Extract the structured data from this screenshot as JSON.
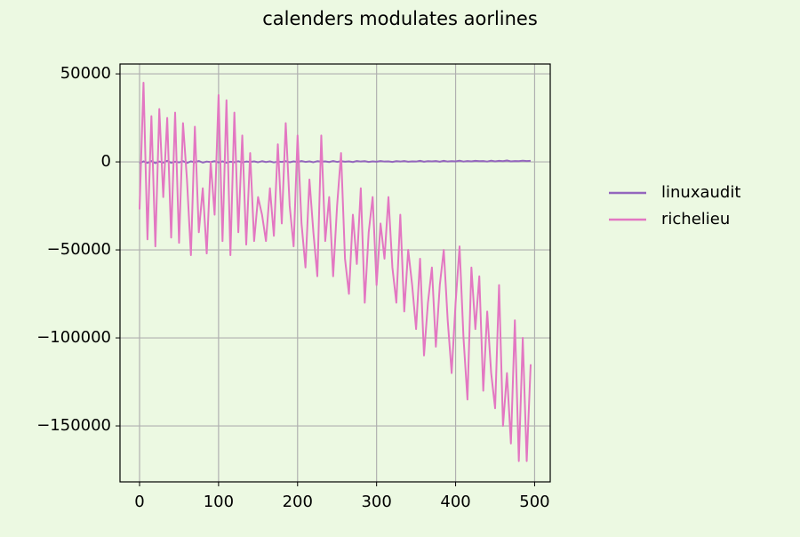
{
  "chart_data": {
    "type": "line",
    "title": "calenders modulates aorlines",
    "x": [
      0,
      5,
      10,
      15,
      20,
      25,
      30,
      35,
      40,
      45,
      50,
      55,
      60,
      65,
      70,
      75,
      80,
      85,
      90,
      95,
      100,
      105,
      110,
      115,
      120,
      125,
      130,
      135,
      140,
      145,
      150,
      155,
      160,
      165,
      170,
      175,
      180,
      185,
      190,
      195,
      200,
      205,
      210,
      215,
      220,
      225,
      230,
      235,
      240,
      245,
      250,
      255,
      260,
      265,
      270,
      275,
      280,
      285,
      290,
      295,
      300,
      305,
      310,
      315,
      320,
      325,
      330,
      335,
      340,
      345,
      350,
      355,
      360,
      365,
      370,
      375,
      380,
      385,
      390,
      395,
      400,
      405,
      410,
      415,
      420,
      425,
      430,
      435,
      440,
      445,
      450,
      455,
      460,
      465,
      470,
      475,
      480,
      485,
      490,
      495
    ],
    "series": [
      {
        "name": "linuxaudit",
        "color": "#9467bd",
        "values": [
          -800,
          300,
          -600,
          500,
          -700,
          200,
          -400,
          600,
          -500,
          100,
          -300,
          400,
          -600,
          300,
          -200,
          500,
          -400,
          200,
          -100,
          400,
          -300,
          300,
          -500,
          100,
          -200,
          400,
          -300,
          200,
          0,
          300,
          -200,
          400,
          -100,
          300,
          -300,
          200,
          0,
          400,
          -200,
          300,
          -100,
          500,
          0,
          300,
          -200,
          400,
          100,
          300,
          -100,
          500,
          0,
          400,
          100,
          300,
          -100,
          500,
          200,
          400,
          0,
          300,
          100,
          500,
          200,
          300,
          0,
          400,
          200,
          500,
          100,
          300,
          200,
          600,
          100,
          400,
          300,
          500,
          100,
          600,
          200,
          400,
          300,
          700,
          200,
          500,
          300,
          600,
          400,
          500,
          200,
          700,
          300,
          600,
          400,
          800,
          300,
          500,
          400,
          700,
          500,
          600
        ]
      },
      {
        "name": "richelieu",
        "color": "#e377c2",
        "values": [
          -27000,
          45000,
          -44000,
          26000,
          -48000,
          30000,
          -20000,
          25000,
          -43000,
          28000,
          -46000,
          22000,
          -10000,
          -53000,
          20000,
          -40000,
          -15000,
          -52000,
          0,
          -30000,
          38000,
          -45000,
          35000,
          -53000,
          28000,
          -40000,
          15000,
          -47000,
          5000,
          -45000,
          -20000,
          -30000,
          -45000,
          -15000,
          -42000,
          10000,
          -35000,
          22000,
          -25000,
          -48000,
          15000,
          -35000,
          -60000,
          -10000,
          -40000,
          -65000,
          15000,
          -45000,
          -20000,
          -65000,
          -25000,
          5000,
          -55000,
          -75000,
          -30000,
          -58000,
          -15000,
          -80000,
          -40000,
          -20000,
          -70000,
          -35000,
          -55000,
          -20000,
          -60000,
          -80000,
          -30000,
          -85000,
          -50000,
          -70000,
          -95000,
          -55000,
          -110000,
          -80000,
          -60000,
          -105000,
          -70000,
          -50000,
          -90000,
          -120000,
          -80000,
          -48000,
          -100000,
          -135000,
          -60000,
          -95000,
          -65000,
          -130000,
          -85000,
          -120000,
          -140000,
          -70000,
          -150000,
          -120000,
          -160000,
          -90000,
          -170000,
          -100000,
          -170000,
          -115000
        ]
      }
    ],
    "xlim": [
      -24.75,
      519.75
    ],
    "xticks": [
      0,
      100,
      200,
      300,
      400,
      500
    ],
    "ylim": [
      -181800,
      55600
    ],
    "yticks": [
      {
        "value": -150000,
        "label": "−150000"
      },
      {
        "value": -100000,
        "label": "−100000"
      },
      {
        "value": -50000,
        "label": "−50000"
      },
      0,
      50000
    ],
    "grid": true,
    "legend": "right"
  }
}
